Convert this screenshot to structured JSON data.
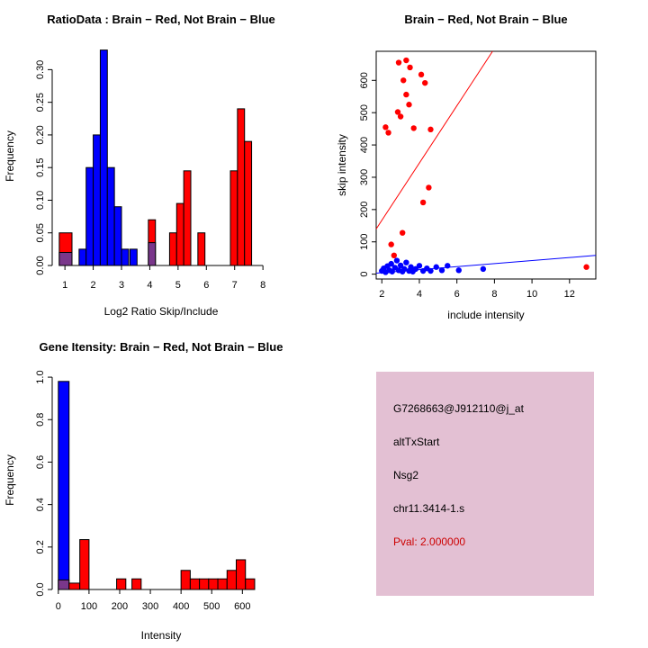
{
  "page": {
    "background": "#ffffff"
  },
  "colors": {
    "red": "#FF0000",
    "blue": "#0000FF",
    "purple": "#7A378B",
    "axis": "#000000"
  },
  "chart_data": [
    {
      "id": "ratio-hist",
      "type": "bar",
      "title": "RatioData : Brain − Red, Not Brain − Blue",
      "xlabel": "Log2 Ratio Skip/Include",
      "ylabel": "Frequency",
      "xlim": [
        0.55,
        8.25
      ],
      "ylim": [
        0,
        0.335
      ],
      "xticks": [
        1,
        2,
        3,
        4,
        5,
        6,
        7,
        8
      ],
      "yticks": [
        0,
        0.05,
        0.1,
        0.15,
        0.2,
        0.25,
        0.3
      ],
      "ytick_labels": [
        "0.00",
        "0.05",
        "0.10",
        "0.15",
        "0.20",
        "0.25",
        "0.30"
      ],
      "grid": false,
      "bars": [
        {
          "x0": 0.8,
          "x1": 1.25,
          "h": 0.05,
          "color": "red"
        },
        {
          "x0": 0.8,
          "x1": 1.25,
          "h": 0.02,
          "color": "purple"
        },
        {
          "x0": 1.5,
          "x1": 1.75,
          "h": 0.025,
          "color": "blue"
        },
        {
          "x0": 1.75,
          "x1": 2.0,
          "h": 0.15,
          "color": "blue"
        },
        {
          "x0": 2.0,
          "x1": 2.25,
          "h": 0.2,
          "color": "blue"
        },
        {
          "x0": 2.25,
          "x1": 2.5,
          "h": 0.33,
          "color": "blue"
        },
        {
          "x0": 2.5,
          "x1": 2.75,
          "h": 0.15,
          "color": "blue"
        },
        {
          "x0": 2.75,
          "x1": 3.0,
          "h": 0.09,
          "color": "blue"
        },
        {
          "x0": 3.0,
          "x1": 3.25,
          "h": 0.025,
          "color": "blue"
        },
        {
          "x0": 3.3,
          "x1": 3.55,
          "h": 0.025,
          "color": "blue"
        },
        {
          "x0": 3.95,
          "x1": 4.2,
          "h": 0.07,
          "color": "red"
        },
        {
          "x0": 3.95,
          "x1": 4.2,
          "h": 0.035,
          "color": "purple"
        },
        {
          "x0": 4.7,
          "x1": 4.95,
          "h": 0.05,
          "color": "red"
        },
        {
          "x0": 4.95,
          "x1": 5.2,
          "h": 0.095,
          "color": "red"
        },
        {
          "x0": 5.2,
          "x1": 5.45,
          "h": 0.145,
          "color": "red"
        },
        {
          "x0": 5.7,
          "x1": 5.95,
          "h": 0.05,
          "color": "red"
        },
        {
          "x0": 6.85,
          "x1": 7.1,
          "h": 0.145,
          "color": "red"
        },
        {
          "x0": 7.1,
          "x1": 7.35,
          "h": 0.24,
          "color": "red"
        },
        {
          "x0": 7.35,
          "x1": 7.6,
          "h": 0.19,
          "color": "red"
        }
      ]
    },
    {
      "id": "scatter",
      "type": "scatter",
      "title": "Brain − Red, Not Brain − Blue",
      "xlabel": "include intensity",
      "ylabel": "skip intensity",
      "xlim": [
        1.7,
        13.4
      ],
      "ylim": [
        -15,
        690
      ],
      "xticks": [
        2,
        4,
        6,
        8,
        10,
        12
      ],
      "yticks": [
        0,
        100,
        200,
        300,
        400,
        500,
        600
      ],
      "ytick_labels": [
        "0",
        "100",
        "200",
        "300",
        "400",
        "500",
        "600"
      ],
      "grid": false,
      "legend_position": "none",
      "series": [
        {
          "name": "Brain",
          "color": "red",
          "points": [
            [
              2.9,
              655
            ],
            [
              3.3,
              662
            ],
            [
              3.5,
              640
            ],
            [
              3.15,
              600
            ],
            [
              4.1,
              618
            ],
            [
              4.3,
              592
            ],
            [
              3.3,
              556
            ],
            [
              3.45,
              525
            ],
            [
              2.85,
              502
            ],
            [
              3.0,
              488
            ],
            [
              2.2,
              455
            ],
            [
              2.35,
              438
            ],
            [
              3.7,
              452
            ],
            [
              4.6,
              448
            ],
            [
              4.5,
              268
            ],
            [
              4.2,
              222
            ],
            [
              3.1,
              128
            ],
            [
              2.5,
              92
            ],
            [
              2.65,
              58
            ],
            [
              12.9,
              22
            ]
          ]
        },
        {
          "name": "Not Brain",
          "color": "blue",
          "points": [
            [
              2.0,
              10
            ],
            [
              2.1,
              18
            ],
            [
              2.2,
              6
            ],
            [
              2.3,
              25
            ],
            [
              2.4,
              12
            ],
            [
              2.5,
              32
            ],
            [
              2.55,
              8
            ],
            [
              2.7,
              20
            ],
            [
              2.8,
              42
            ],
            [
              2.9,
              12
            ],
            [
              3.0,
              27
            ],
            [
              3.1,
              8
            ],
            [
              3.2,
              16
            ],
            [
              3.3,
              36
            ],
            [
              3.45,
              10
            ],
            [
              3.55,
              22
            ],
            [
              3.65,
              8
            ],
            [
              3.8,
              16
            ],
            [
              4.0,
              26
            ],
            [
              4.2,
              10
            ],
            [
              4.4,
              18
            ],
            [
              4.6,
              10
            ],
            [
              4.9,
              22
            ],
            [
              5.2,
              12
            ],
            [
              5.5,
              26
            ],
            [
              6.1,
              12
            ],
            [
              7.4,
              16
            ]
          ]
        }
      ],
      "lines": [
        {
          "x1": 1.7,
          "y1": 140,
          "x2": 7.9,
          "y2": 690,
          "color": "red"
        },
        {
          "x1": 1.7,
          "y1": 3,
          "x2": 13.4,
          "y2": 58,
          "color": "blue"
        }
      ]
    },
    {
      "id": "gene-hist",
      "type": "bar",
      "title": "Gene Itensity: Brain − Red, Not Brain − Blue",
      "xlabel": "Intensity",
      "ylabel": "Frequency",
      "xlim": [
        -20,
        690
      ],
      "ylim": [
        0,
        1.03
      ],
      "xticks": [
        0,
        100,
        200,
        300,
        400,
        500,
        600
      ],
      "yticks": [
        0,
        0.2,
        0.4,
        0.6,
        0.8,
        1.0
      ],
      "ytick_labels": [
        "0.0",
        "0.2",
        "0.4",
        "0.6",
        "0.8",
        "1.0"
      ],
      "grid": false,
      "bars": [
        {
          "x0": 0,
          "x1": 35,
          "h": 0.98,
          "color": "blue"
        },
        {
          "x0": 0,
          "x1": 35,
          "h": 0.045,
          "color": "purple"
        },
        {
          "x0": 35,
          "x1": 70,
          "h": 0.03,
          "color": "red"
        },
        {
          "x0": 70,
          "x1": 100,
          "h": 0.235,
          "color": "red"
        },
        {
          "x0": 190,
          "x1": 220,
          "h": 0.05,
          "color": "red"
        },
        {
          "x0": 240,
          "x1": 270,
          "h": 0.05,
          "color": "red"
        },
        {
          "x0": 400,
          "x1": 430,
          "h": 0.09,
          "color": "red"
        },
        {
          "x0": 430,
          "x1": 460,
          "h": 0.05,
          "color": "red"
        },
        {
          "x0": 460,
          "x1": 490,
          "h": 0.05,
          "color": "red"
        },
        {
          "x0": 490,
          "x1": 520,
          "h": 0.05,
          "color": "red"
        },
        {
          "x0": 520,
          "x1": 550,
          "h": 0.05,
          "color": "red"
        },
        {
          "x0": 550,
          "x1": 580,
          "h": 0.09,
          "color": "red"
        },
        {
          "x0": 580,
          "x1": 610,
          "h": 0.14,
          "color": "red"
        },
        {
          "x0": 610,
          "x1": 640,
          "h": 0.05,
          "color": "red"
        }
      ]
    }
  ],
  "info_panel": {
    "bg": "#E3C0D3",
    "lines": [
      {
        "text": "G7268663@J912110@j_at",
        "color": "#000000"
      },
      {
        "text": "altTxStart",
        "color": "#000000"
      },
      {
        "text": "Nsg2",
        "color": "#000000"
      },
      {
        "text": "chr11.3414-1.s",
        "color": "#000000"
      },
      {
        "text": "Pval: 2.000000",
        "color": "#CC0000"
      }
    ]
  }
}
